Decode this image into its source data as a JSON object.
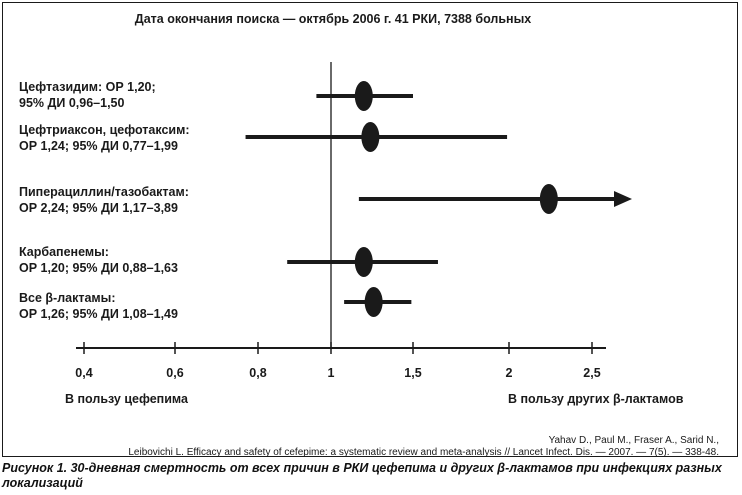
{
  "header": "Дата окончания поиска — октябрь 2006 г. 41 РКИ, 7388 больных",
  "chart_data": {
    "type": "forest",
    "reference_line": 1,
    "ticks": [
      "0,4",
      "0,6",
      "0,8",
      "1",
      "1,5",
      "2",
      "2,5"
    ],
    "direction_left": "В пользу цефепима",
    "direction_right": "В пользу других β-лактамов",
    "rows": [
      {
        "label_line1": "Цефтазидим: ОР 1,20;",
        "label_line2": "95% ДИ 0,96–1,50",
        "or": 1.2,
        "ci_low": 0.96,
        "ci_high": 1.5,
        "arrow": false
      },
      {
        "label_line1": "Цефтриаксон, цефотаксим:",
        "label_line2": "ОР 1,24; 95% ДИ 0,77–1,99",
        "or": 1.24,
        "ci_low": 0.77,
        "ci_high": 1.99,
        "arrow": false
      },
      {
        "label_line1": "Пиперациллин/тазобактам:",
        "label_line2": "ОР 2,24; 95% ДИ 1,17–3,89",
        "or": 2.24,
        "ci_low": 1.17,
        "ci_high": 3.89,
        "arrow": true
      },
      {
        "label_line1": "Карбапенемы:",
        "label_line2": "ОР 1,20; 95% ДИ 0,88–1,63",
        "or": 1.2,
        "ci_low": 0.88,
        "ci_high": 1.63,
        "arrow": false
      },
      {
        "label_line1": "Все β-лактамы:",
        "label_line2": "ОР 1,26; 95% ДИ 1,08–1,49",
        "or": 1.26,
        "ci_low": 1.08,
        "ci_high": 1.49,
        "arrow": false
      }
    ]
  },
  "citation_line1": "Yahav D., Paul M., Fraser A., Sarid N.,",
  "citation_line2": "Leibovichi L. Efficacy and safety of cefepime: a systematic review and meta-analysis // Lancet Infect. Dis. — 2007. — 7(5). — 338-48.",
  "caption": "Рисунок 1. 30-дневная смертность от всех причин в РКИ цефепима и других β-лактамов при инфекциях разных локализаций"
}
